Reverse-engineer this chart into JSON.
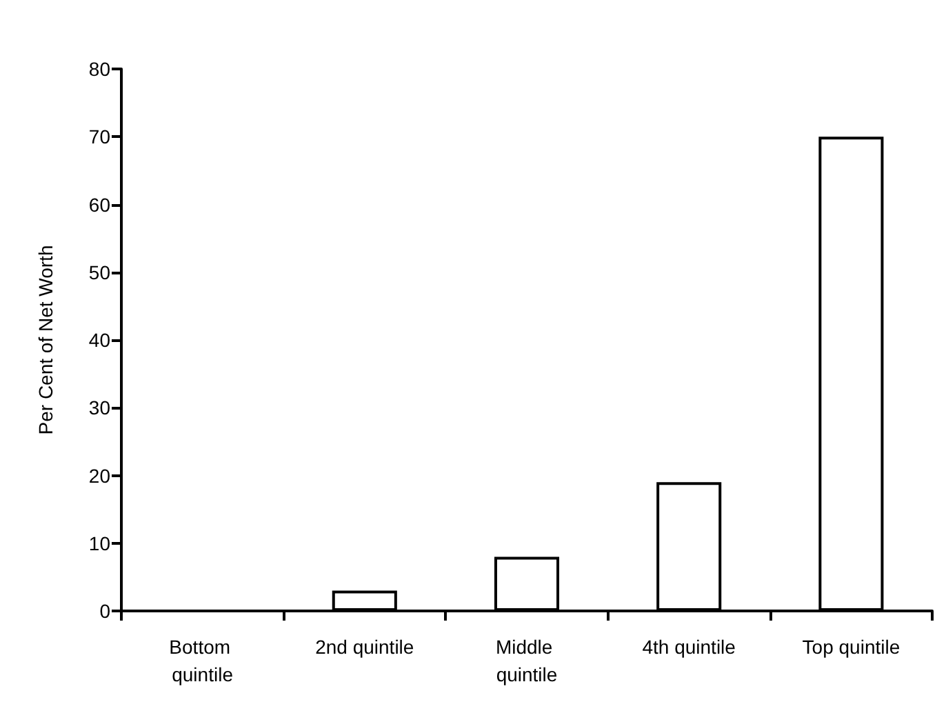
{
  "chart_data": {
    "type": "bar",
    "ylabel": "Per Cent of Net Worth",
    "categories": [
      "Bottom quintile",
      "2nd quintile",
      "Middle quintile",
      "4th quintile",
      "Top quintile"
    ],
    "values": [
      0,
      3,
      8,
      19,
      70
    ],
    "color": "#ffffff",
    "ylim": [
      0,
      80
    ],
    "yticks": [
      0,
      10,
      20,
      30,
      40,
      50,
      60,
      70,
      80
    ],
    "grid": false
  }
}
